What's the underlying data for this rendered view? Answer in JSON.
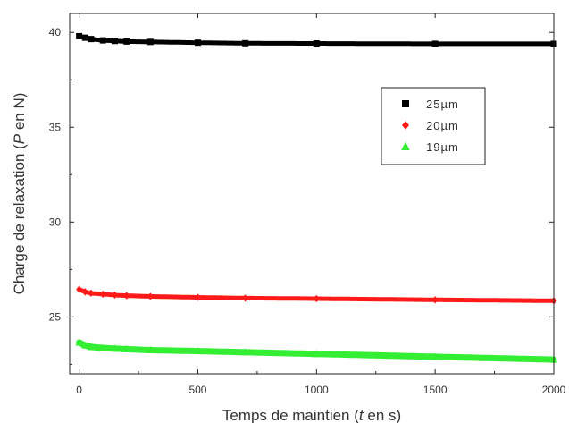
{
  "chart_data": {
    "type": "scatter",
    "title": "",
    "xlabel_parts": [
      "Temps de maintien (",
      "t",
      " en s)"
    ],
    "ylabel_parts": [
      "Charge de relaxation (",
      "P",
      " en N)"
    ],
    "xlim": [
      -40,
      2000
    ],
    "ylim": [
      22.0,
      41.0
    ],
    "xticks": [
      0,
      500,
      1000,
      1500,
      2000
    ],
    "yticks": [
      25,
      30,
      35,
      40
    ],
    "xtick_labels": [
      "0",
      "500",
      "1000",
      "1500",
      "2000"
    ],
    "ytick_labels": [
      "25",
      "30",
      "35",
      "40"
    ],
    "grid": false,
    "legend_position": "top-right",
    "series": [
      {
        "name": "25µm",
        "color": "#000000",
        "marker": "square",
        "x": [
          0,
          25,
          50,
          100,
          150,
          200,
          300,
          500,
          700,
          1000,
          1500,
          2000
        ],
        "y": [
          39.8,
          39.72,
          39.65,
          39.58,
          39.55,
          39.52,
          39.5,
          39.46,
          39.43,
          39.42,
          39.4,
          39.4
        ]
      },
      {
        "name": "20µm",
        "color": "#ff1a1a",
        "marker": "diamond",
        "x": [
          0,
          25,
          50,
          100,
          150,
          200,
          300,
          500,
          700,
          1000,
          1500,
          2000
        ],
        "y": [
          26.45,
          26.32,
          26.25,
          26.2,
          26.15,
          26.12,
          26.08,
          26.03,
          25.99,
          25.96,
          25.9,
          25.85
        ]
      },
      {
        "name": "19µm",
        "color": "#33ee33",
        "marker": "triangle",
        "x": [
          0,
          25,
          50,
          100,
          150,
          200,
          300,
          500,
          700,
          1000,
          1500,
          2000
        ],
        "y": [
          23.65,
          23.5,
          23.42,
          23.36,
          23.33,
          23.3,
          23.25,
          23.2,
          23.14,
          23.05,
          22.9,
          22.75
        ]
      }
    ]
  }
}
